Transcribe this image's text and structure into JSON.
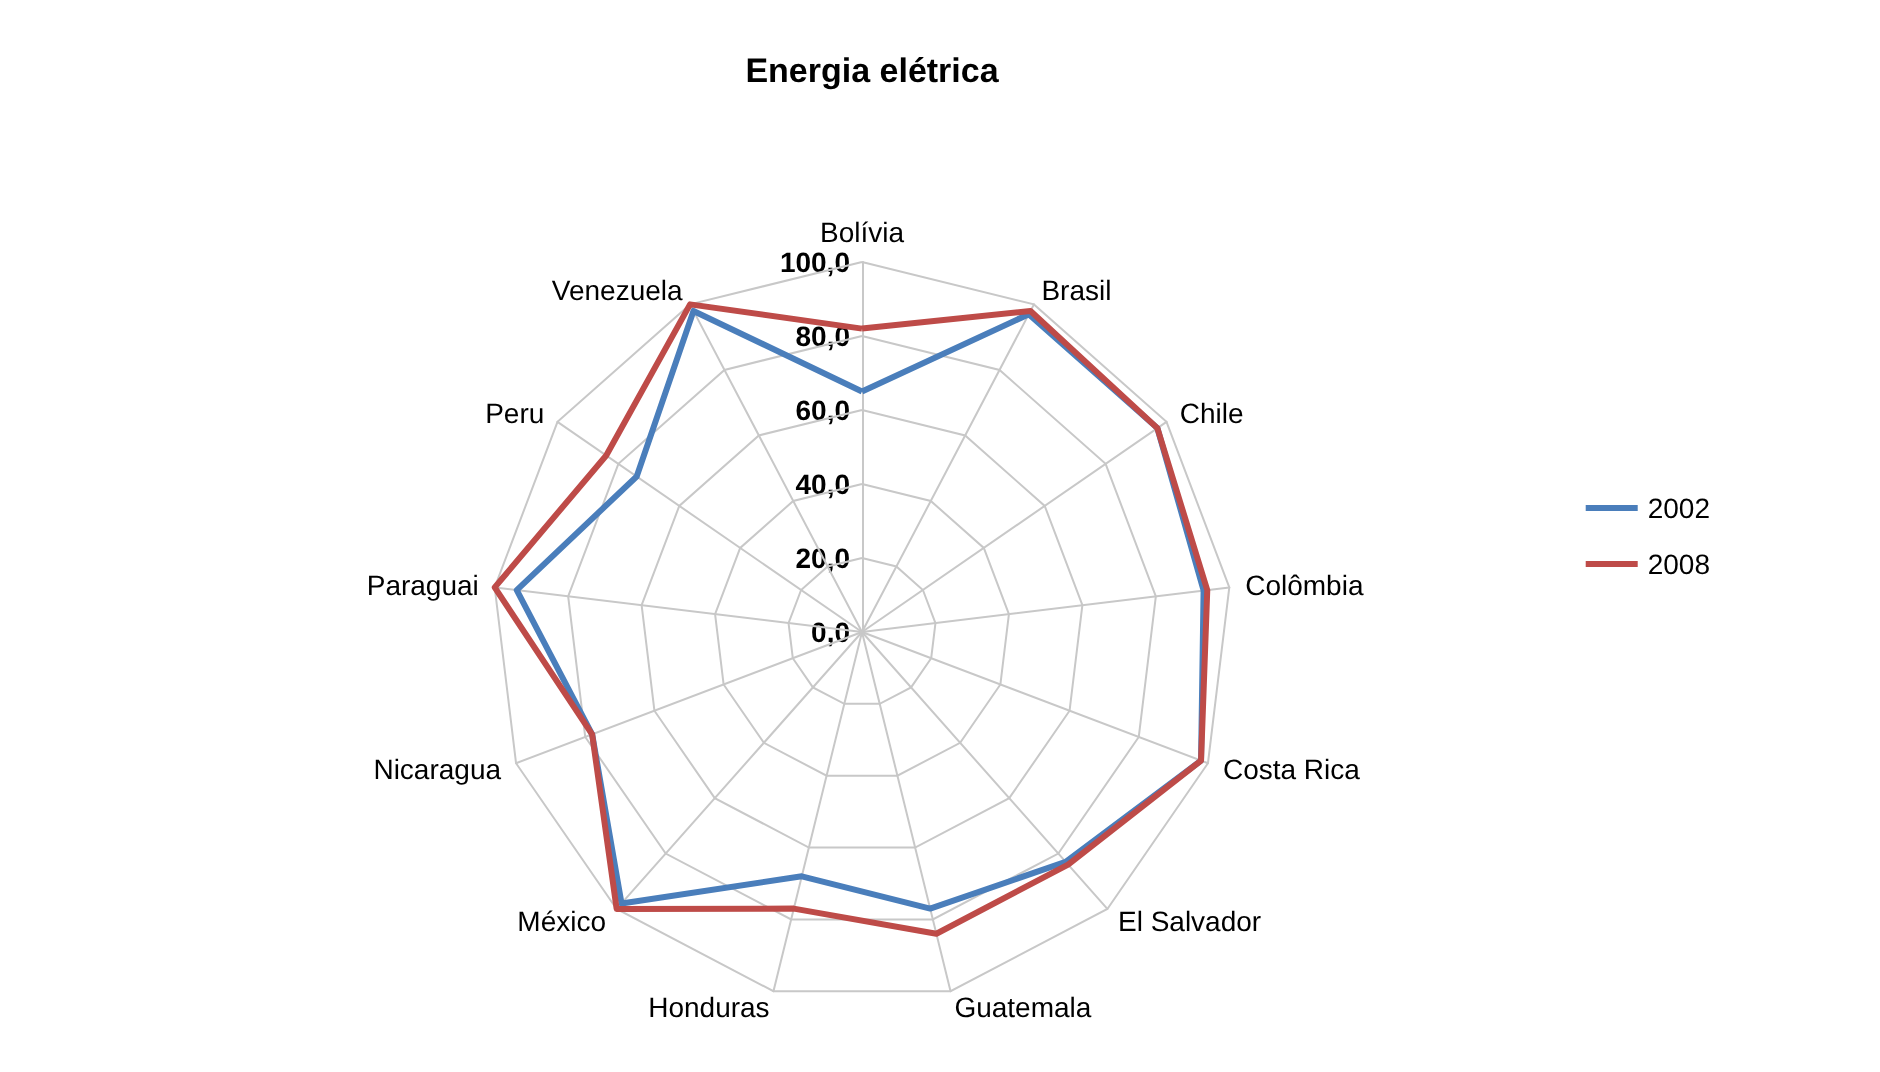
{
  "chart_data": {
    "type": "radar",
    "title": "Energia elétrica",
    "categories": [
      "Bolívia",
      "Brasil",
      "Chile",
      "Colômbia",
      "Costa Rica",
      "El Salvador",
      "Guatemala",
      "Honduras",
      "México",
      "Nicaragua",
      "Paraguai",
      "Peru",
      "Venezuela"
    ],
    "series": [
      {
        "name": "2002",
        "color": "#4a7ebb",
        "values": [
          65,
          97,
          97,
          93,
          98,
          83,
          77,
          68,
          98,
          78,
          94,
          74,
          98
        ]
      },
      {
        "name": "2008",
        "color": "#be4b48",
        "values": [
          82,
          98,
          97,
          94,
          98,
          84,
          84,
          77,
          100,
          78,
          100,
          84,
          100
        ]
      }
    ],
    "ylim": [
      0,
      100
    ],
    "yticks": [
      {
        "value": 0,
        "label": "0,0"
      },
      {
        "value": 20,
        "label": "20,0"
      },
      {
        "value": 40,
        "label": "40,0"
      },
      {
        "value": 60,
        "label": "60,0"
      },
      {
        "value": 80,
        "label": "80,0"
      },
      {
        "value": 100,
        "label": "100,0"
      }
    ],
    "grid": true,
    "legend": "right",
    "marker": "none",
    "line_style": "solid"
  }
}
